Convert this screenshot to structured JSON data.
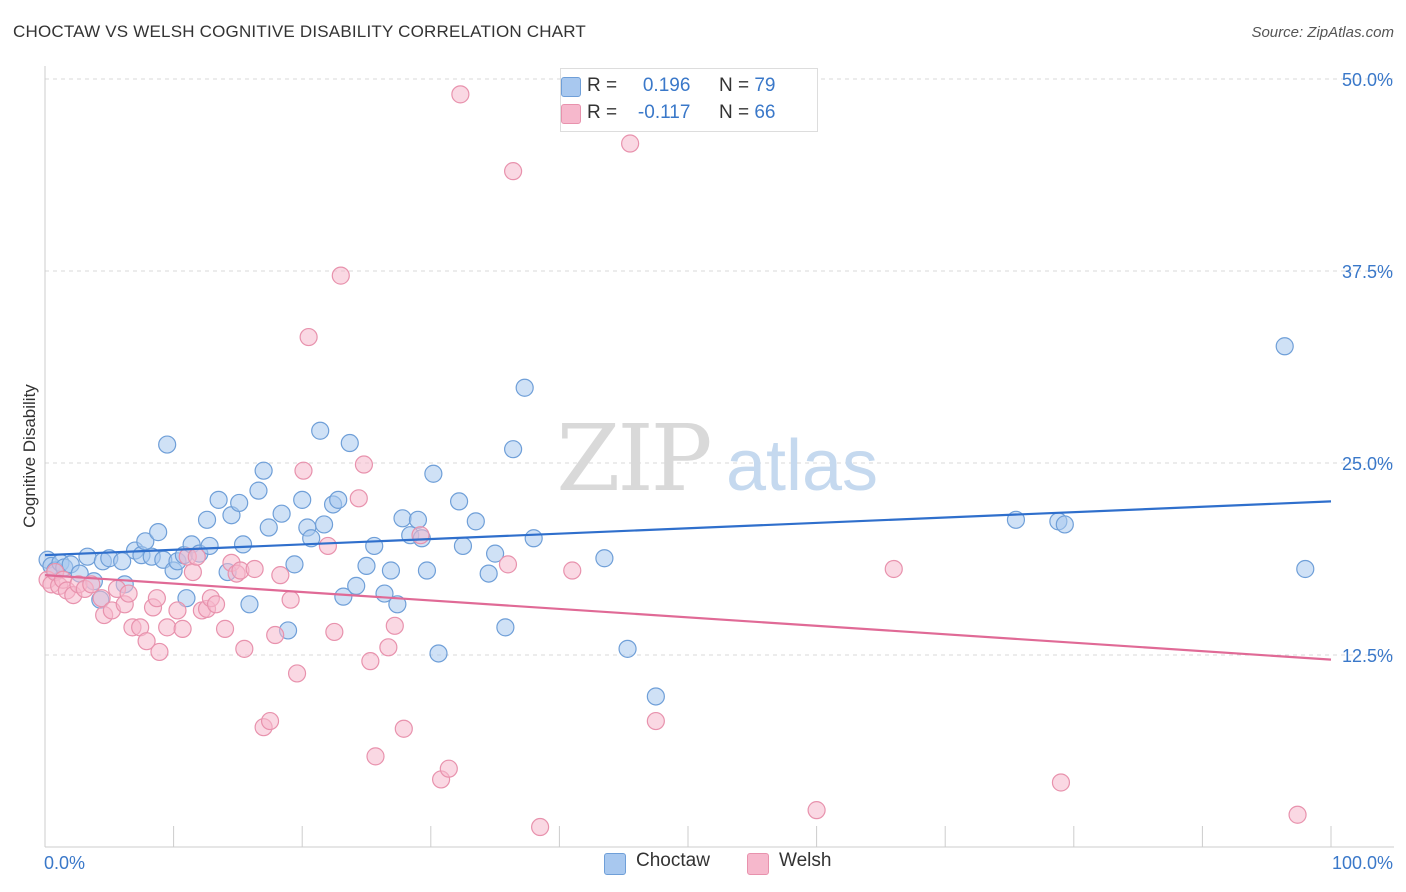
{
  "title": "CHOCTAW VS WELSH COGNITIVE DISABILITY CORRELATION CHART",
  "source": "Source: ZipAtlas.com",
  "watermark": {
    "part1": "ZIP",
    "part2": "atlas"
  },
  "legend_top": {
    "rows": [
      {
        "r_label": "R =",
        "r_value": "0.196",
        "n_label": "N =",
        "n_value": "79"
      },
      {
        "r_label": "R =",
        "r_value": "-0.117",
        "n_label": "N =",
        "n_value": "66"
      }
    ]
  },
  "legend_bottom": [
    {
      "label": "Choctaw"
    },
    {
      "label": "Welsh"
    }
  ],
  "colors": {
    "choctaw_fill": "#a8c8ef",
    "choctaw_stroke": "#6f9fd8",
    "choctaw_line": "#2f6fcc",
    "welsh_fill": "#f6b8cc",
    "welsh_stroke": "#e892ad",
    "welsh_line": "#e06a96",
    "axis_label": "#3a78c9",
    "grid": "#d8d8d8"
  },
  "chart_data": {
    "type": "scatter",
    "title": "CHOCTAW VS WELSH COGNITIVE DISABILITY CORRELATION CHART",
    "xlabel": "",
    "ylabel": "Cognitive Disability",
    "xlim": [
      0,
      100
    ],
    "ylim": [
      0,
      50
    ],
    "x_tick_labels": [
      "0.0%",
      "100.0%"
    ],
    "y_ticks": [
      12.5,
      25.0,
      37.5,
      50.0
    ],
    "y_tick_labels": [
      "12.5%",
      "25.0%",
      "37.5%",
      "50.0%"
    ],
    "grid": true,
    "series": [
      {
        "name": "Choctaw",
        "r": 0.196,
        "n": 79,
        "trend": {
          "x": [
            0,
            100
          ],
          "y": [
            19.0,
            22.5
          ]
        },
        "points": [
          [
            0.2,
            18.7
          ],
          [
            0.5,
            18.3
          ],
          [
            0.8,
            18.0
          ],
          [
            1.2,
            18.5
          ],
          [
            1.5,
            18.2
          ],
          [
            2.0,
            18.4
          ],
          [
            2.7,
            17.8
          ],
          [
            3.3,
            18.9
          ],
          [
            3.8,
            17.3
          ],
          [
            4.3,
            16.1
          ],
          [
            4.5,
            18.6
          ],
          [
            5.0,
            18.8
          ],
          [
            6.0,
            18.6
          ],
          [
            6.2,
            17.1
          ],
          [
            7.0,
            19.3
          ],
          [
            7.5,
            19.0
          ],
          [
            7.8,
            19.9
          ],
          [
            8.3,
            18.9
          ],
          [
            8.8,
            20.5
          ],
          [
            9.2,
            18.7
          ],
          [
            9.5,
            26.2
          ],
          [
            10.0,
            18.0
          ],
          [
            10.3,
            18.6
          ],
          [
            10.8,
            19.0
          ],
          [
            11.0,
            16.2
          ],
          [
            11.4,
            19.7
          ],
          [
            12.0,
            19.1
          ],
          [
            12.6,
            21.3
          ],
          [
            12.8,
            19.6
          ],
          [
            13.5,
            22.6
          ],
          [
            14.2,
            17.9
          ],
          [
            14.5,
            21.6
          ],
          [
            15.1,
            22.4
          ],
          [
            15.4,
            19.7
          ],
          [
            15.9,
            15.8
          ],
          [
            16.6,
            23.2
          ],
          [
            17.0,
            24.5
          ],
          [
            17.4,
            20.8
          ],
          [
            18.4,
            21.7
          ],
          [
            18.9,
            14.1
          ],
          [
            19.4,
            18.4
          ],
          [
            20.0,
            22.6
          ],
          [
            20.4,
            20.8
          ],
          [
            20.7,
            20.1
          ],
          [
            21.4,
            27.1
          ],
          [
            21.7,
            21.0
          ],
          [
            22.4,
            22.3
          ],
          [
            22.8,
            22.6
          ],
          [
            23.2,
            16.3
          ],
          [
            23.7,
            26.3
          ],
          [
            24.2,
            17.0
          ],
          [
            25.0,
            18.3
          ],
          [
            25.6,
            19.6
          ],
          [
            26.4,
            16.5
          ],
          [
            26.9,
            18.0
          ],
          [
            27.4,
            15.8
          ],
          [
            27.8,
            21.4
          ],
          [
            28.4,
            20.3
          ],
          [
            29.0,
            21.3
          ],
          [
            29.3,
            20.1
          ],
          [
            29.7,
            18.0
          ],
          [
            30.2,
            24.3
          ],
          [
            30.6,
            12.6
          ],
          [
            32.2,
            22.5
          ],
          [
            32.5,
            19.6
          ],
          [
            33.5,
            21.2
          ],
          [
            34.5,
            17.8
          ],
          [
            35.0,
            19.1
          ],
          [
            35.8,
            14.3
          ],
          [
            36.4,
            25.9
          ],
          [
            37.3,
            29.9
          ],
          [
            38.0,
            20.1
          ],
          [
            43.5,
            18.8
          ],
          [
            45.3,
            12.9
          ],
          [
            47.5,
            9.8
          ],
          [
            75.5,
            21.3
          ],
          [
            78.8,
            21.2
          ],
          [
            79.3,
            21.0
          ],
          [
            96.4,
            32.6
          ],
          [
            98.0,
            18.1
          ]
        ]
      },
      {
        "name": "Welsh",
        "r": -0.117,
        "n": 66,
        "trend": {
          "x": [
            0,
            100
          ],
          "y": [
            17.7,
            12.2
          ]
        },
        "points": [
          [
            0.2,
            17.4
          ],
          [
            0.5,
            17.1
          ],
          [
            0.8,
            17.9
          ],
          [
            1.1,
            17.0
          ],
          [
            1.4,
            17.4
          ],
          [
            1.7,
            16.7
          ],
          [
            2.2,
            16.4
          ],
          [
            2.6,
            17.1
          ],
          [
            3.1,
            16.8
          ],
          [
            3.6,
            17.1
          ],
          [
            4.4,
            16.2
          ],
          [
            4.6,
            15.1
          ],
          [
            5.2,
            15.4
          ],
          [
            5.6,
            16.8
          ],
          [
            6.2,
            15.8
          ],
          [
            6.5,
            16.5
          ],
          [
            6.8,
            14.3
          ],
          [
            7.4,
            14.3
          ],
          [
            7.9,
            13.4
          ],
          [
            8.4,
            15.6
          ],
          [
            8.7,
            16.2
          ],
          [
            8.9,
            12.7
          ],
          [
            9.5,
            14.3
          ],
          [
            10.3,
            15.4
          ],
          [
            10.7,
            14.2
          ],
          [
            11.1,
            18.9
          ],
          [
            11.5,
            17.9
          ],
          [
            11.8,
            18.9
          ],
          [
            12.2,
            15.4
          ],
          [
            12.6,
            15.5
          ],
          [
            12.9,
            16.2
          ],
          [
            13.3,
            15.8
          ],
          [
            14.0,
            14.2
          ],
          [
            14.5,
            18.5
          ],
          [
            14.9,
            17.8
          ],
          [
            15.2,
            18.0
          ],
          [
            15.5,
            12.9
          ],
          [
            16.3,
            18.1
          ],
          [
            17.0,
            7.8
          ],
          [
            17.5,
            8.2
          ],
          [
            17.9,
            13.8
          ],
          [
            18.3,
            17.7
          ],
          [
            19.1,
            16.1
          ],
          [
            19.6,
            11.3
          ],
          [
            20.1,
            24.5
          ],
          [
            20.5,
            33.2
          ],
          [
            22.0,
            19.6
          ],
          [
            22.5,
            14.0
          ],
          [
            23.0,
            37.2
          ],
          [
            24.4,
            22.7
          ],
          [
            24.8,
            24.9
          ],
          [
            25.3,
            12.1
          ],
          [
            25.7,
            5.9
          ],
          [
            26.7,
            13.0
          ],
          [
            27.2,
            14.4
          ],
          [
            27.9,
            7.7
          ],
          [
            29.2,
            20.3
          ],
          [
            30.8,
            4.4
          ],
          [
            31.4,
            5.1
          ],
          [
            32.3,
            49.0
          ],
          [
            36.0,
            18.4
          ],
          [
            36.4,
            44.0
          ],
          [
            38.5,
            1.3
          ],
          [
            41.0,
            18.0
          ],
          [
            45.5,
            45.8
          ],
          [
            47.5,
            8.2
          ],
          [
            60.0,
            2.4
          ],
          [
            66.0,
            18.1
          ],
          [
            79.0,
            4.2
          ],
          [
            97.4,
            2.1
          ]
        ]
      }
    ]
  }
}
